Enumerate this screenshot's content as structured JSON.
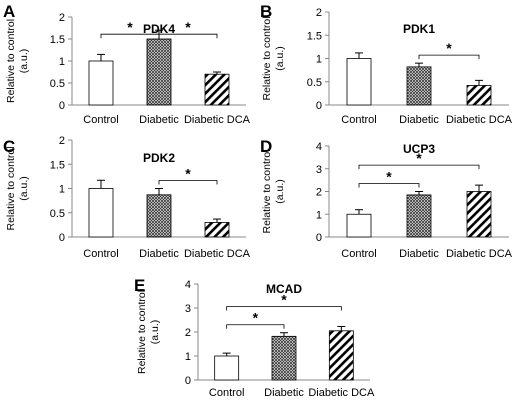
{
  "chart_data": [
    {
      "panel": "A",
      "type": "bar",
      "title": "PDK4",
      "ylabel": [
        "Relative to control",
        "(a.u.)"
      ],
      "ylim": [
        0,
        2
      ],
      "yticks": [
        "0",
        "0.5",
        "1",
        "1.5",
        "2"
      ],
      "categories": [
        "Control",
        "Diabetic",
        "Diabetic DCA"
      ],
      "values": [
        1.0,
        1.5,
        0.7
      ],
      "errors": [
        0.15,
        0.2,
        0.05
      ],
      "significance": [
        {
          "from": 0,
          "to": 1,
          "label": "*"
        },
        {
          "from": 1,
          "to": 2,
          "label": "*"
        }
      ]
    },
    {
      "panel": "B",
      "type": "bar",
      "title": "PDK1",
      "ylabel": [
        "Relative to control",
        "(a.u.)"
      ],
      "ylim": [
        0,
        2
      ],
      "yticks": [
        "0",
        "0.5",
        "1",
        "1.5",
        "2"
      ],
      "categories": [
        "Control",
        "Diabetic",
        "Diabetic DCA"
      ],
      "values": [
        1.0,
        0.82,
        0.42
      ],
      "errors": [
        0.12,
        0.08,
        0.11
      ],
      "significance": [
        {
          "from": 1,
          "to": 2,
          "label": "*"
        }
      ]
    },
    {
      "panel": "C",
      "type": "bar",
      "title": "PDK2",
      "ylabel": [
        "Relative to control",
        "(a.u.)"
      ],
      "ylim": [
        0,
        2
      ],
      "yticks": [
        "0",
        "0.5",
        "1",
        "1.5",
        "2"
      ],
      "categories": [
        "Control",
        "Diabetic",
        "Diabetic DCA"
      ],
      "values": [
        1.0,
        0.87,
        0.3
      ],
      "errors": [
        0.17,
        0.13,
        0.07
      ],
      "significance": [
        {
          "from": 1,
          "to": 2,
          "label": "*"
        }
      ]
    },
    {
      "panel": "D",
      "type": "bar",
      "title": "UCP3",
      "ylabel": [
        "Relative to control",
        "(a.u.)"
      ],
      "ylim": [
        0,
        4
      ],
      "yticks": [
        "0",
        "1",
        "2",
        "3",
        "4"
      ],
      "categories": [
        "Control",
        "Diabetic",
        "Diabetic DCA"
      ],
      "values": [
        1.0,
        1.85,
        2.0
      ],
      "errors": [
        0.2,
        0.15,
        0.28
      ],
      "significance": [
        {
          "from": 0,
          "to": 1,
          "label": "*"
        },
        {
          "from": 0,
          "to": 2,
          "label": "*"
        }
      ]
    },
    {
      "panel": "E",
      "type": "bar",
      "title": "MCAD",
      "ylabel": [
        "Relative to control",
        "(a.u.)"
      ],
      "ylim": [
        0,
        4
      ],
      "yticks": [
        "0",
        "1",
        "2",
        "3",
        "4"
      ],
      "categories": [
        "Control",
        "Diabetic",
        "Diabetic DCA"
      ],
      "values": [
        1.0,
        1.82,
        2.05
      ],
      "errors": [
        0.12,
        0.15,
        0.18
      ],
      "significance": [
        {
          "from": 0,
          "to": 1,
          "label": "*"
        },
        {
          "from": 0,
          "to": 2,
          "label": "*"
        }
      ]
    }
  ],
  "style": {
    "bar_fills": [
      "white",
      "crosshatch",
      "diagonal-stripes"
    ],
    "axis_color": "#888888",
    "bar_stroke": "#000000"
  }
}
